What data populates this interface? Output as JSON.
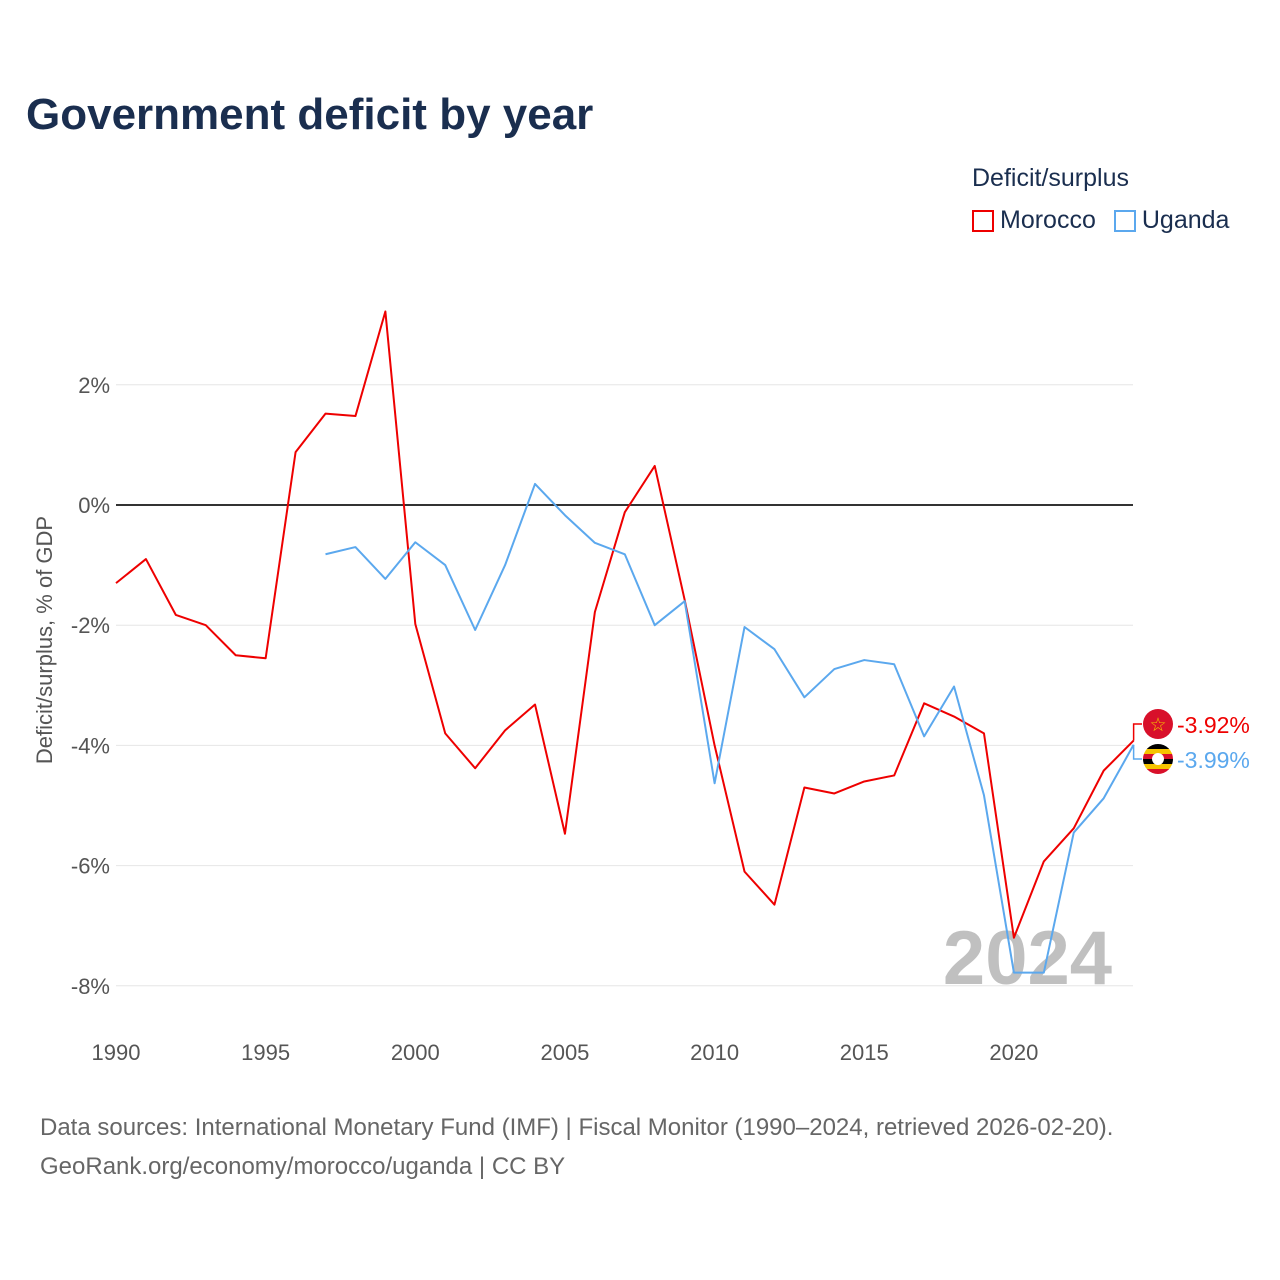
{
  "title": "Government deficit by year",
  "legend": {
    "title": "Deficit/surplus",
    "items": [
      {
        "name": "Morocco",
        "color": "#ee0000"
      },
      {
        "name": "Uganda",
        "color": "#5ba8ee"
      }
    ]
  },
  "watermark_year": "2024",
  "source": {
    "line1": "Data sources: International Monetary Fund (IMF) | Fiscal Monitor (1990–2024, retrieved 2026-02-20).",
    "line2": "GeoRank.org/economy/morocco/uganda | CC BY"
  },
  "chart_data": {
    "type": "line",
    "title": "Government deficit by year",
    "xlabel": "",
    "ylabel": "Deficit/surplus, % of GDP",
    "xlim": [
      1990,
      2024
    ],
    "ylim": [
      -8.3,
      3.5
    ],
    "x_ticks": [
      1990,
      1995,
      2000,
      2005,
      2010,
      2015,
      2020
    ],
    "y_ticks": [
      {
        "v": 2,
        "label": "2%"
      },
      {
        "v": 0,
        "label": "0%"
      },
      {
        "v": -2,
        "label": "-2%"
      },
      {
        "v": -4,
        "label": "-4%"
      },
      {
        "v": -6,
        "label": "-6%"
      },
      {
        "v": -8,
        "label": "-8%"
      }
    ],
    "grid": true,
    "legend_position": "top-right",
    "series": [
      {
        "name": "Morocco",
        "color": "#ee0000",
        "end_label": "-3.92%",
        "start": 1990,
        "values": [
          -1.3,
          -0.9,
          -1.83,
          -2.0,
          -2.5,
          -2.55,
          0.88,
          1.52,
          1.48,
          3.22,
          -1.98,
          -3.8,
          -4.38,
          -3.75,
          -3.32,
          -5.47,
          -1.78,
          -0.12,
          0.65,
          -1.58,
          -4.0,
          -6.1,
          -6.65,
          -4.7,
          -4.8,
          -4.6,
          -4.5,
          -3.3,
          -3.52,
          -3.8,
          -7.2,
          -5.93,
          -5.38,
          -4.42,
          -3.92
        ]
      },
      {
        "name": "Uganda",
        "color": "#5ba8ee",
        "end_label": "-3.99%",
        "start": 1997,
        "values": [
          -0.82,
          -0.7,
          -1.23,
          -0.62,
          -1.0,
          -2.08,
          -1.0,
          0.35,
          -0.17,
          -0.63,
          -0.82,
          -2.0,
          -1.6,
          -4.63,
          -2.03,
          -2.4,
          -3.2,
          -2.73,
          -2.58,
          -2.65,
          -3.85,
          -3.02,
          -4.83,
          -7.78,
          -7.78,
          -5.45,
          -4.88,
          -3.99
        ]
      }
    ]
  }
}
